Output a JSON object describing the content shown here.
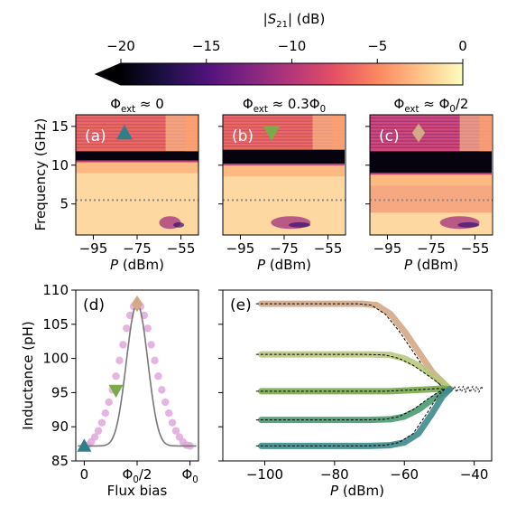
{
  "colorbar": {
    "label": "|S21| (dB)",
    "tick_labels": [
      "−20",
      "−15",
      "−10",
      "−5",
      "0"
    ],
    "range": [
      -20,
      0
    ],
    "extend": "min",
    "colormap": [
      "#000004",
      "#1c1044",
      "#4f127b",
      "#812581",
      "#b5367a",
      "#e55064",
      "#fb8761",
      "#fec287",
      "#fcfdbf"
    ]
  },
  "panel_titles": [
    "Φext ≈ 0",
    "Φext ≈ 0.3Φ0",
    "Φext ≈ Φ0/2"
  ],
  "panel_letters": [
    "(a)",
    "(b)",
    "(c)",
    "(d)",
    "(e)"
  ],
  "marker_colors": {
    "teal": "#2f7f8a",
    "green": "#7aaa4a",
    "tan": "#d4a987"
  },
  "chart_data": [
    {
      "type": "heatmap",
      "panel": "(a)",
      "title": "Φext ≈ 0",
      "xlabel": "P (dBm)",
      "ylabel": "Frequency (GHz)",
      "xticks": [
        "−95",
        "−75",
        "−55"
      ],
      "yticks": [
        "5",
        "10",
        "15"
      ],
      "xlim": [
        -103,
        -47
      ],
      "ylim": [
        1,
        16.5
      ],
      "resonance_band_GHz": [
        10.6,
        11.8
      ],
      "dotted_line_GHz": 5.5,
      "marker": "triangle-up"
    },
    {
      "type": "heatmap",
      "panel": "(b)",
      "title": "Φext ≈ 0.3Φ0",
      "xlabel": "P (dBm)",
      "xticks": [
        "−95",
        "−75",
        "−55"
      ],
      "xlim": [
        -103,
        -47
      ],
      "ylim": [
        1,
        16.5
      ],
      "resonance_band_GHz": [
        10.2,
        12.0
      ],
      "dotted_line_GHz": 5.5,
      "marker": "triangle-down"
    },
    {
      "type": "heatmap",
      "panel": "(c)",
      "title": "Φext ≈ Φ0/2",
      "xlabel": "P (dBm)",
      "xticks": [
        "−95",
        "−75",
        "−55"
      ],
      "xlim": [
        -103,
        -47
      ],
      "ylim": [
        1,
        16.5
      ],
      "resonance_band_GHz": [
        9.0,
        11.8
      ],
      "dotted_line_GHz": 5.5,
      "marker": "diamond"
    },
    {
      "type": "scatter",
      "panel": "(d)",
      "xlabel": "Flux bias",
      "ylabel": "Inductance (pH)",
      "xticks": [
        "0",
        "Φ0/2",
        "Φ0"
      ],
      "yticks": [
        "85",
        "90",
        "95",
        "100",
        "105",
        "110"
      ],
      "xlim": [
        -0.08,
        1.08
      ],
      "ylim": [
        85,
        110
      ],
      "points_y": [
        87.2,
        87.3,
        87.8,
        88.5,
        89.4,
        90.6,
        92.0,
        93.6,
        95.4,
        97.4,
        99.7,
        102.0,
        104.4,
        106.3,
        107.6,
        108.0,
        107.6,
        106.3,
        104.4,
        102.0,
        99.7,
        97.4,
        95.4,
        93.6,
        92.0,
        90.6,
        89.4,
        88.5,
        87.8,
        87.3,
        87.2
      ],
      "markers": [
        {
          "x": 0.0,
          "y": 87.2,
          "shape": "triangle-up",
          "color": "#2f7f8a"
        },
        {
          "x": 0.3,
          "y": 95.3,
          "shape": "triangle-down",
          "color": "#7aaa4a"
        },
        {
          "x": 0.5,
          "y": 108.0,
          "shape": "diamond",
          "color": "#d4a987"
        }
      ]
    },
    {
      "type": "line",
      "panel": "(e)",
      "xlabel": "P (dBm)",
      "ylabel": "",
      "xticks": [
        "−100",
        "−80",
        "−60",
        "−40"
      ],
      "xlim": [
        -112,
        -35
      ],
      "ylim": [
        85,
        110
      ],
      "convergence_point": {
        "x": -46,
        "y": 95.5
      },
      "series": [
        {
          "color": "#d4a987",
          "x": [
            -101,
            -90,
            -80,
            -72,
            -68,
            -64,
            -60,
            -56,
            -52,
            -49,
            -47
          ],
          "y": [
            108.0,
            108.0,
            108.0,
            108.0,
            107.8,
            106.5,
            104.0,
            101.0,
            98.0,
            96.5,
            95.5
          ]
        },
        {
          "color": "#b9c87e",
          "x": [
            -101,
            -90,
            -80,
            -70,
            -64,
            -60,
            -56,
            -52,
            -49,
            -47
          ],
          "y": [
            100.6,
            100.6,
            100.6,
            100.6,
            100.5,
            100.0,
            99.0,
            97.6,
            96.5,
            95.5
          ]
        },
        {
          "color": "#7aaa4a",
          "x": [
            -101,
            -90,
            -80,
            -70,
            -64,
            -60,
            -56,
            -52,
            -49,
            -47
          ],
          "y": [
            95.2,
            95.2,
            95.2,
            95.2,
            95.2,
            95.3,
            95.4,
            95.5,
            95.6,
            95.5
          ]
        },
        {
          "color": "#4e9a72",
          "x": [
            -101,
            -90,
            -80,
            -70,
            -64,
            -60,
            -56,
            -52,
            -49,
            -47
          ],
          "y": [
            91.0,
            91.0,
            91.0,
            91.0,
            91.1,
            91.5,
            92.5,
            94.0,
            95.0,
            95.5
          ]
        },
        {
          "color": "#3f8a8c",
          "x": [
            -101,
            -90,
            -80,
            -70,
            -64,
            -60,
            -56,
            -52,
            -49,
            -47
          ],
          "y": [
            87.2,
            87.2,
            87.2,
            87.2,
            87.3,
            87.7,
            89.0,
            92.0,
            94.5,
            95.5
          ]
        }
      ]
    }
  ]
}
